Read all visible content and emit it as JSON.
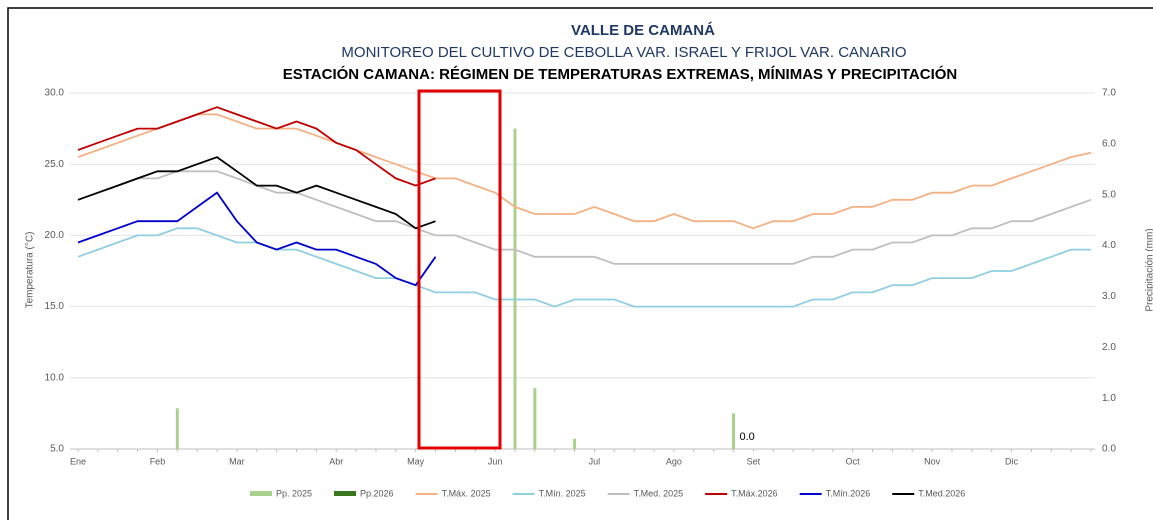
{
  "chart_data": {
    "type": "line",
    "title": "VALLE DE CAMANÁ",
    "subtitle": "MONITOREO DEL CULTIVO DE CEBOLLA VAR. ISRAEL Y FRIJOL VAR. CANARIO",
    "subtitle2": "ESTACIÓN CAMANA: RÉGIMEN DE TEMPERATURAS EXTREMAS, MÍNIMAS Y PRECIPITACIÓN",
    "y_label": "Temperatura (°C)",
    "y2_label": "Precipitación (mm)",
    "categories": [
      "Ene",
      null,
      null,
      null,
      "Feb",
      null,
      null,
      null,
      "Mar",
      null,
      null,
      null,
      null,
      "Abr",
      null,
      null,
      null,
      "May",
      null,
      null,
      null,
      "Jun",
      null,
      null,
      null,
      null,
      "Jul",
      null,
      null,
      null,
      "Ago",
      null,
      null,
      null,
      "Set",
      null,
      null,
      null,
      null,
      "Oct",
      null,
      null,
      null,
      "Nov",
      null,
      null,
      null,
      "Dic",
      null,
      null,
      null,
      null
    ],
    "ylim": [
      5,
      30
    ],
    "yticks": [
      {
        "value": 5,
        "label": "5.0"
      },
      {
        "value": 10,
        "label": "10.0"
      },
      {
        "value": 15,
        "label": "15.0"
      },
      {
        "value": 20,
        "label": "20.0"
      },
      {
        "value": 25,
        "label": "25.0"
      },
      {
        "value": 30,
        "label": "30.0"
      }
    ],
    "y2lim": [
      0,
      7
    ],
    "y2ticks": [
      {
        "value": 0,
        "label": "0.0"
      },
      {
        "value": 1,
        "label": "1.0"
      },
      {
        "value": 2,
        "label": "2.0"
      },
      {
        "value": 3,
        "label": "3.0"
      },
      {
        "value": 4,
        "label": "4.0"
      },
      {
        "value": 5,
        "label": "5.0"
      },
      {
        "value": 6,
        "label": "6.0"
      },
      {
        "value": 7,
        "label": "7.0"
      }
    ],
    "grid": true,
    "series": [
      {
        "name": "Pp. 2025",
        "type": "bar",
        "axis": "y2",
        "color": "#a9d18e",
        "values": [
          0,
          0,
          0,
          0,
          0,
          0.8,
          0,
          0,
          0,
          0,
          0,
          0,
          0,
          0,
          0,
          0,
          0,
          0,
          0,
          0,
          0,
          0,
          6.3,
          1.2,
          0,
          0.2,
          0,
          0,
          0,
          0,
          0,
          0,
          0,
          0.7,
          0,
          0,
          0,
          0,
          0,
          0,
          0,
          0,
          0,
          0,
          0,
          0,
          0,
          0,
          0,
          0,
          0,
          0
        ]
      },
      {
        "name": "Pp.2026",
        "type": "bar",
        "axis": "y2",
        "color": "#38761d",
        "values": [
          0,
          0,
          0,
          0,
          0,
          0,
          0,
          0,
          0,
          0,
          0,
          0,
          0,
          0,
          0,
          0,
          0,
          0,
          0,
          null,
          null,
          null,
          null,
          null,
          null,
          null,
          null,
          null,
          null,
          null,
          null,
          null,
          null,
          0,
          null,
          null,
          null,
          null,
          null,
          null,
          null,
          null,
          null,
          null,
          null,
          null,
          null,
          null,
          null,
          null,
          null,
          null
        ],
        "value_labels": [
          null,
          null,
          null,
          null,
          null,
          null,
          null,
          null,
          null,
          null,
          null,
          null,
          null,
          null,
          null,
          null,
          null,
          null,
          null,
          null,
          null,
          null,
          null,
          null,
          null,
          null,
          null,
          null,
          null,
          null,
          null,
          null,
          null,
          "0.0",
          null,
          null,
          null,
          null,
          null,
          null,
          null,
          null,
          null,
          null,
          null,
          null,
          null,
          null,
          null,
          null,
          null,
          null
        ]
      },
      {
        "name": "T.Máx. 2025",
        "type": "line",
        "color": "#f4b183",
        "values": [
          25.5,
          26,
          26.5,
          27,
          27.5,
          28,
          28.5,
          28.5,
          28,
          27.5,
          27.5,
          27.5,
          27,
          26.5,
          26,
          25.5,
          25,
          24.5,
          24,
          24,
          23.5,
          23,
          22,
          21.5,
          21.5,
          21.5,
          22,
          21.5,
          21,
          21,
          21.5,
          21,
          21,
          21,
          20.5,
          21,
          21,
          21.5,
          21.5,
          22,
          22,
          22.5,
          22.5,
          23,
          23,
          23.5,
          23.5,
          24,
          24.5,
          25,
          25.5,
          25.8
        ]
      },
      {
        "name": "T.Mín. 2025",
        "type": "line",
        "color": "#8fcfe0",
        "values": [
          18.5,
          19,
          19.5,
          20,
          20,
          20.5,
          20.5,
          20,
          19.5,
          19.5,
          19,
          19,
          18.5,
          18,
          17.5,
          17,
          17,
          16.5,
          16,
          16,
          16,
          15.5,
          15.5,
          15.5,
          15,
          15.5,
          15.5,
          15.5,
          15,
          15,
          15,
          15,
          15,
          15,
          15,
          15,
          15,
          15.5,
          15.5,
          16,
          16,
          16.5,
          16.5,
          17,
          17,
          17,
          17.5,
          17.5,
          18,
          18.5,
          19,
          19
        ]
      },
      {
        "name": "T.Med. 2025",
        "type": "line",
        "color": "#bfbfbf",
        "values": [
          22.5,
          23,
          23.5,
          24,
          24,
          24.5,
          24.5,
          24.5,
          24,
          23.5,
          23,
          23,
          22.5,
          22,
          21.5,
          21,
          21,
          20.5,
          20,
          20,
          19.5,
          19,
          19,
          18.5,
          18.5,
          18.5,
          18.5,
          18,
          18,
          18,
          18,
          18,
          18,
          18,
          18,
          18,
          18,
          18.5,
          18.5,
          19,
          19,
          19.5,
          19.5,
          20,
          20,
          20.5,
          20.5,
          21,
          21,
          21.5,
          22,
          22.5
        ]
      },
      {
        "name": "T.Máx.2026",
        "type": "line",
        "color": "#c00000",
        "values": [
          26,
          26.5,
          27,
          27.5,
          27.5,
          28,
          28.5,
          29,
          28.5,
          28,
          27.5,
          28,
          27.5,
          26.5,
          26,
          25,
          24,
          23.5,
          24,
          null,
          null,
          null,
          null,
          null,
          null,
          null,
          null,
          null,
          null,
          null,
          null,
          null,
          null,
          null,
          null,
          null,
          null,
          null,
          null,
          null,
          null,
          null,
          null,
          null,
          null,
          null,
          null,
          null,
          null,
          null,
          null,
          null
        ]
      },
      {
        "name": "T.Mín.2026",
        "type": "line",
        "color": "#0000cc",
        "values": [
          19.5,
          20,
          20.5,
          21,
          21,
          21,
          22,
          23,
          21,
          19.5,
          19,
          19.5,
          19,
          19,
          18.5,
          18,
          17,
          16.5,
          18.5,
          null,
          null,
          null,
          null,
          null,
          null,
          null,
          null,
          null,
          null,
          null,
          null,
          null,
          null,
          null,
          null,
          null,
          null,
          null,
          null,
          null,
          null,
          null,
          null,
          null,
          null,
          null,
          null,
          null,
          null,
          null,
          null,
          null
        ]
      },
      {
        "name": "T.Med.2026",
        "type": "line",
        "color": "#000000",
        "values": [
          22.5,
          23,
          23.5,
          24,
          24.5,
          24.5,
          25,
          25.5,
          24.5,
          23.5,
          23.5,
          23,
          23.5,
          23,
          22.5,
          22,
          21.5,
          20.5,
          21,
          null,
          null,
          null,
          null,
          null,
          null,
          null,
          null,
          null,
          null,
          null,
          null,
          null,
          null,
          null,
          null,
          null,
          null,
          null,
          null,
          null,
          null,
          null,
          null,
          null,
          null,
          null,
          null,
          null,
          null,
          null,
          null,
          null
        ]
      }
    ]
  }
}
